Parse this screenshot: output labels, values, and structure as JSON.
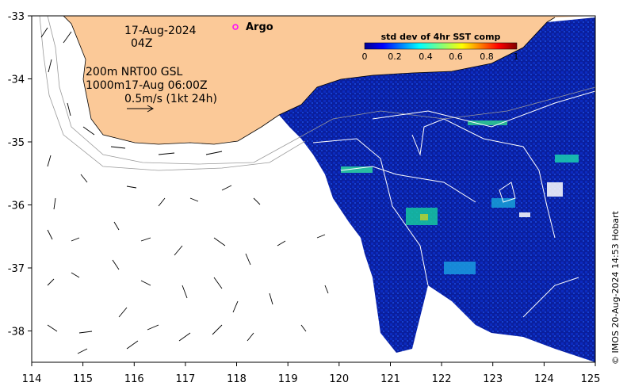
{
  "map": {
    "date": "17-Aug-2024",
    "time": "04Z",
    "contour_line1": "200m  NRT00 GSL",
    "contour_line2": "1000m17-Aug 06:00Z",
    "scale_label": "0.5m/s (1kt 24h)",
    "argo_label": "Argo",
    "credit": "© IMOS 20-Aug-2024 14:53 Hobart",
    "colorbar": {
      "title": "std dev of 4hr SST comp",
      "ticks": [
        "0",
        "0.2",
        "0.4",
        "0.6",
        "0.8",
        "1"
      ]
    },
    "lon_ticks": [
      "114",
      "115",
      "116",
      "117",
      "118",
      "119",
      "120",
      "121",
      "122",
      "123",
      "124",
      "125"
    ],
    "lat_ticks": [
      "-33",
      "-34",
      "-35",
      "-36",
      "-37",
      "-38"
    ],
    "colors": {
      "land": "#fbc998",
      "ocean_low": "#0a1f9e",
      "argo_marker": "#ff00ff"
    }
  },
  "chart_data": {
    "type": "heatmap",
    "title": "std dev of 4hr SST comp",
    "xlim": [
      114,
      125
    ],
    "ylim": [
      -38.5,
      -33
    ],
    "color_range": [
      0,
      1
    ],
    "grid": false
  }
}
